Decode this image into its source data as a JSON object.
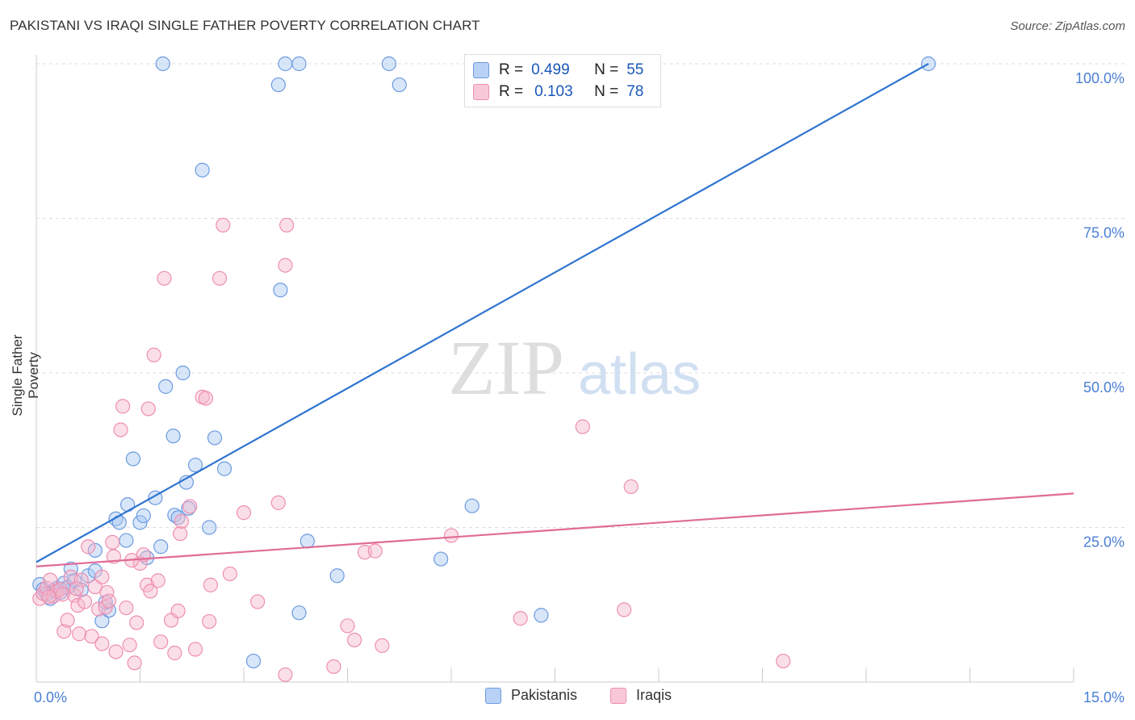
{
  "title": "PAKISTANI VS IRAQI SINGLE FATHER POVERTY CORRELATION CHART",
  "source": "Source: ZipAtlas.com",
  "watermark": {
    "zip": "ZIP",
    "atlas": "atlas"
  },
  "colors": {
    "pakistanis_fill": "#a9c7f1",
    "pakistanis_stroke": "#6b9be0",
    "pakistanis_line": "#2f74d0",
    "iraqis_fill": "#f7b8cc",
    "iraqis_stroke": "#ee8fb0",
    "iraqis_line": "#e06b97",
    "tick_label": "#4a7fd4",
    "grid": "#dddddd"
  },
  "legend": {
    "rows": [
      {
        "r_label": "R =",
        "r_value": "0.499",
        "n_label": "N =",
        "n_value": "55"
      },
      {
        "r_label": "R =",
        "r_value": "0.103",
        "n_label": "N =",
        "n_value": "78"
      }
    ]
  },
  "chart_data": {
    "type": "scatter",
    "title": "PAKISTANI VS IRAQI SINGLE FATHER POVERTY CORRELATION CHART",
    "xlabel": "",
    "ylabel": "Single Father Poverty",
    "xlim": [
      0,
      15
    ],
    "ylim": [
      0,
      100
    ],
    "x_tick_labels": [
      {
        "value": 0,
        "label": "0.0%"
      },
      {
        "value": 15,
        "label": "15.0%"
      }
    ],
    "y_tick_labels": [
      {
        "value": 25,
        "label": "25.0%"
      },
      {
        "value": 50,
        "label": "50.0%"
      },
      {
        "value": 75,
        "label": "75.0%"
      },
      {
        "value": 100,
        "label": "100.0%"
      }
    ],
    "grid": true,
    "legend_position": "top-center",
    "series": [
      {
        "name": "Pakistanis",
        "r": 0.499,
        "n": 55,
        "trend": {
          "x": [
            0,
            12.9
          ],
          "y": [
            19.4,
            100
          ]
        },
        "points": [
          [
            0.05,
            15.8
          ],
          [
            0.1,
            15.0
          ],
          [
            0.15,
            14.2
          ],
          [
            0.2,
            13.5
          ],
          [
            0.25,
            14.8
          ],
          [
            0.3,
            15.2
          ],
          [
            0.35,
            14.5
          ],
          [
            0.4,
            16.0
          ],
          [
            0.45,
            15.3
          ],
          [
            0.5,
            18.3
          ],
          [
            0.55,
            16.4
          ],
          [
            0.65,
            14.9
          ],
          [
            0.75,
            17.2
          ],
          [
            0.85,
            18.0
          ],
          [
            0.85,
            21.3
          ],
          [
            0.95,
            9.9
          ],
          [
            1.05,
            11.6
          ],
          [
            1.0,
            12.9
          ],
          [
            1.15,
            26.4
          ],
          [
            1.2,
            25.8
          ],
          [
            1.3,
            22.9
          ],
          [
            1.32,
            28.7
          ],
          [
            1.4,
            36.1
          ],
          [
            1.5,
            25.8
          ],
          [
            1.55,
            26.9
          ],
          [
            1.6,
            20.1
          ],
          [
            1.72,
            29.8
          ],
          [
            1.8,
            21.9
          ],
          [
            1.87,
            47.8
          ],
          [
            1.98,
            39.8
          ],
          [
            2.0,
            27.0
          ],
          [
            2.05,
            26.6
          ],
          [
            2.12,
            50.0
          ],
          [
            2.17,
            32.3
          ],
          [
            2.2,
            28.1
          ],
          [
            2.3,
            35.1
          ],
          [
            2.4,
            82.8
          ],
          [
            2.5,
            25.0
          ],
          [
            2.58,
            39.5
          ],
          [
            2.72,
            34.5
          ],
          [
            3.14,
            3.4
          ],
          [
            3.5,
            96.6
          ],
          [
            3.53,
            63.4
          ],
          [
            3.6,
            100.0
          ],
          [
            3.8,
            100.0
          ],
          [
            3.8,
            11.2
          ],
          [
            3.92,
            22.8
          ],
          [
            4.35,
            17.2
          ],
          [
            5.1,
            100.0
          ],
          [
            5.25,
            96.6
          ],
          [
            5.85,
            19.9
          ],
          [
            6.3,
            28.5
          ],
          [
            7.3,
            10.8
          ],
          [
            12.9,
            100.0
          ],
          [
            1.83,
            100.0
          ]
        ]
      },
      {
        "name": "Iraqis",
        "r": 0.103,
        "n": 78,
        "trend": {
          "x": [
            0,
            15
          ],
          "y": [
            18.7,
            30.5
          ]
        },
        "points": [
          [
            0.05,
            13.5
          ],
          [
            0.1,
            14.3
          ],
          [
            0.15,
            15.2
          ],
          [
            0.2,
            16.5
          ],
          [
            0.25,
            13.9
          ],
          [
            0.3,
            14.7
          ],
          [
            0.35,
            15.0
          ],
          [
            0.4,
            8.2
          ],
          [
            0.45,
            10.0
          ],
          [
            0.5,
            17.0
          ],
          [
            0.55,
            14.0
          ],
          [
            0.6,
            12.4
          ],
          [
            0.62,
            7.8
          ],
          [
            0.65,
            16.5
          ],
          [
            0.7,
            13.0
          ],
          [
            0.75,
            21.9
          ],
          [
            0.8,
            7.4
          ],
          [
            0.85,
            15.4
          ],
          [
            0.9,
            11.8
          ],
          [
            0.95,
            6.2
          ],
          [
            1.0,
            12.1
          ],
          [
            1.02,
            14.5
          ],
          [
            1.05,
            13.1
          ],
          [
            1.1,
            22.6
          ],
          [
            1.12,
            20.3
          ],
          [
            1.15,
            4.9
          ],
          [
            1.22,
            40.8
          ],
          [
            1.25,
            44.6
          ],
          [
            1.3,
            12.0
          ],
          [
            1.35,
            6.0
          ],
          [
            1.42,
            3.1
          ],
          [
            1.45,
            9.6
          ],
          [
            1.5,
            19.2
          ],
          [
            1.55,
            20.6
          ],
          [
            1.6,
            15.7
          ],
          [
            1.62,
            44.2
          ],
          [
            1.65,
            14.7
          ],
          [
            1.7,
            52.9
          ],
          [
            1.76,
            16.4
          ],
          [
            1.8,
            6.5
          ],
          [
            1.85,
            65.3
          ],
          [
            1.95,
            10.0
          ],
          [
            2.0,
            4.7
          ],
          [
            2.05,
            11.5
          ],
          [
            2.08,
            24.0
          ],
          [
            2.1,
            26.0
          ],
          [
            2.22,
            28.4
          ],
          [
            2.3,
            5.3
          ],
          [
            2.4,
            46.1
          ],
          [
            2.45,
            45.9
          ],
          [
            2.5,
            9.8
          ],
          [
            2.52,
            15.7
          ],
          [
            2.65,
            65.3
          ],
          [
            2.7,
            73.9
          ],
          [
            2.8,
            17.5
          ],
          [
            3.0,
            27.4
          ],
          [
            3.2,
            13.0
          ],
          [
            3.5,
            29.0
          ],
          [
            3.6,
            67.4
          ],
          [
            3.62,
            73.9
          ],
          [
            3.6,
            1.2
          ],
          [
            4.3,
            2.5
          ],
          [
            4.5,
            9.1
          ],
          [
            4.6,
            6.8
          ],
          [
            4.75,
            21.0
          ],
          [
            4.9,
            21.2
          ],
          [
            5.0,
            5.9
          ],
          [
            6.0,
            23.7
          ],
          [
            7.0,
            10.3
          ],
          [
            7.9,
            41.3
          ],
          [
            8.5,
            11.7
          ],
          [
            8.6,
            31.6
          ],
          [
            10.8,
            3.4
          ],
          [
            0.18,
            13.8
          ],
          [
            0.38,
            14.2
          ],
          [
            0.58,
            15.1
          ],
          [
            0.95,
            17.0
          ],
          [
            1.38,
            19.7
          ]
        ]
      }
    ]
  },
  "bottom_legend": [
    {
      "label": "Pakistanis"
    },
    {
      "label": "Iraqis"
    }
  ]
}
